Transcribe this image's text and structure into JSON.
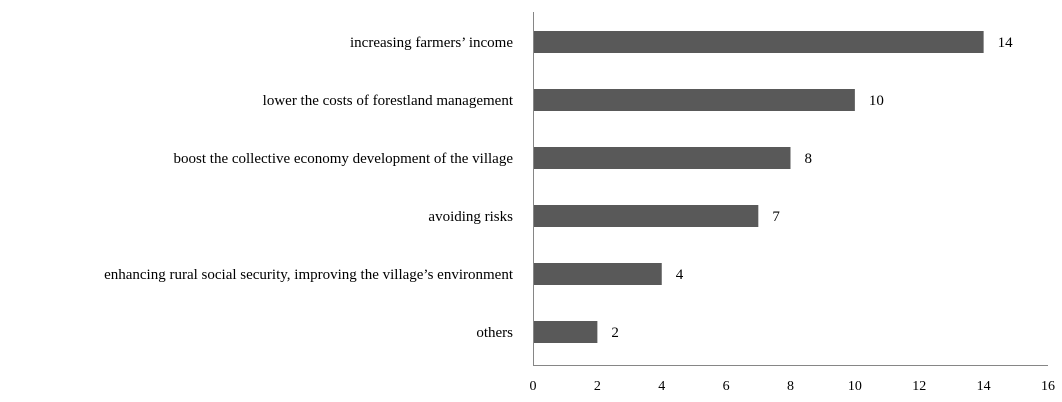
{
  "chart_data": {
    "type": "bar",
    "orientation": "horizontal",
    "categories": [
      "increasing farmers’ income",
      "lower the costs of forestland management",
      "boost the collective economy development of the village",
      "avoiding risks",
      "enhancing rural social security, improving the village’s environment",
      "others"
    ],
    "values": [
      14,
      10,
      8,
      7,
      4,
      2
    ],
    "value_labels": [
      "14",
      "10",
      "8",
      "7",
      "4",
      "2"
    ],
    "xlim": [
      0,
      16
    ],
    "xticks": [
      "0",
      "2",
      "4",
      "6",
      "8",
      "10",
      "12",
      "14",
      "16"
    ],
    "grid": false,
    "legend": "none",
    "title": "",
    "xlabel": "",
    "ylabel": "",
    "colors": {
      "bar": "#595959",
      "axis": "#868686",
      "text": "#000000",
      "background": "#ffffff"
    }
  }
}
